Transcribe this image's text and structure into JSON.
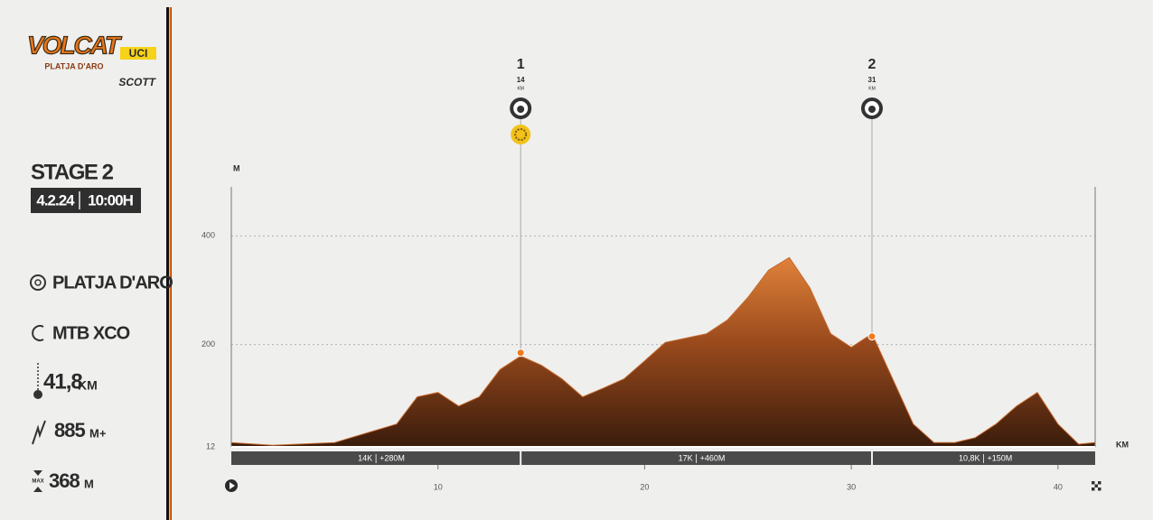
{
  "sidebar": {
    "logo": {
      "name": "VOLCAT",
      "badge": "UCI",
      "place": "PLATJA D'ARO",
      "sponsor": "SCOTT"
    },
    "stage": "STAGE 2",
    "date": "4.2.24",
    "time": "10:00H",
    "location": "PLATJA D'ARO",
    "discipline": "MTB XCO",
    "distance": {
      "value": "41,8",
      "unit": "KM"
    },
    "climb": {
      "value": 885,
      "unit": "M+"
    },
    "max": {
      "label": "MAX",
      "value": 368,
      "unit": "M"
    }
  },
  "chart_data": {
    "type": "area",
    "y_label": "M",
    "x_label": "KM",
    "x": [
      0,
      2,
      5,
      8,
      9,
      10,
      11,
      12,
      13,
      14,
      15,
      16,
      17,
      18,
      19,
      20,
      21,
      22,
      23,
      24,
      25,
      26,
      27,
      28,
      29,
      30,
      31,
      32,
      33,
      34,
      35,
      36,
      37,
      38,
      39,
      40,
      41,
      41.8
    ],
    "values": [
      20,
      15,
      20,
      54,
      104,
      112,
      87,
      104,
      154,
      179,
      162,
      137,
      104,
      120,
      137,
      170,
      204,
      212,
      220,
      245,
      287,
      337,
      360,
      304,
      220,
      195,
      220,
      137,
      54,
      20,
      20,
      29,
      54,
      87,
      112,
      54,
      17,
      20
    ],
    "color": "#c8682a",
    "xlim": [
      0,
      41.8
    ],
    "xticks": [
      10,
      20,
      30,
      40
    ],
    "ylim": [
      12,
      490
    ],
    "yticks": [
      12,
      200,
      400
    ],
    "grid": true,
    "checkpoints": [
      {
        "number": "1",
        "km": 14,
        "unit": "KM",
        "elevation": 185
      },
      {
        "number": "2",
        "km": 31,
        "unit": "KM",
        "elevation": 215
      }
    ],
    "segments": [
      {
        "distance": "14K",
        "gain": "+280M"
      },
      {
        "distance": "17K",
        "gain": "+460M"
      },
      {
        "distance": "10,8K",
        "gain": "+150M"
      }
    ]
  }
}
